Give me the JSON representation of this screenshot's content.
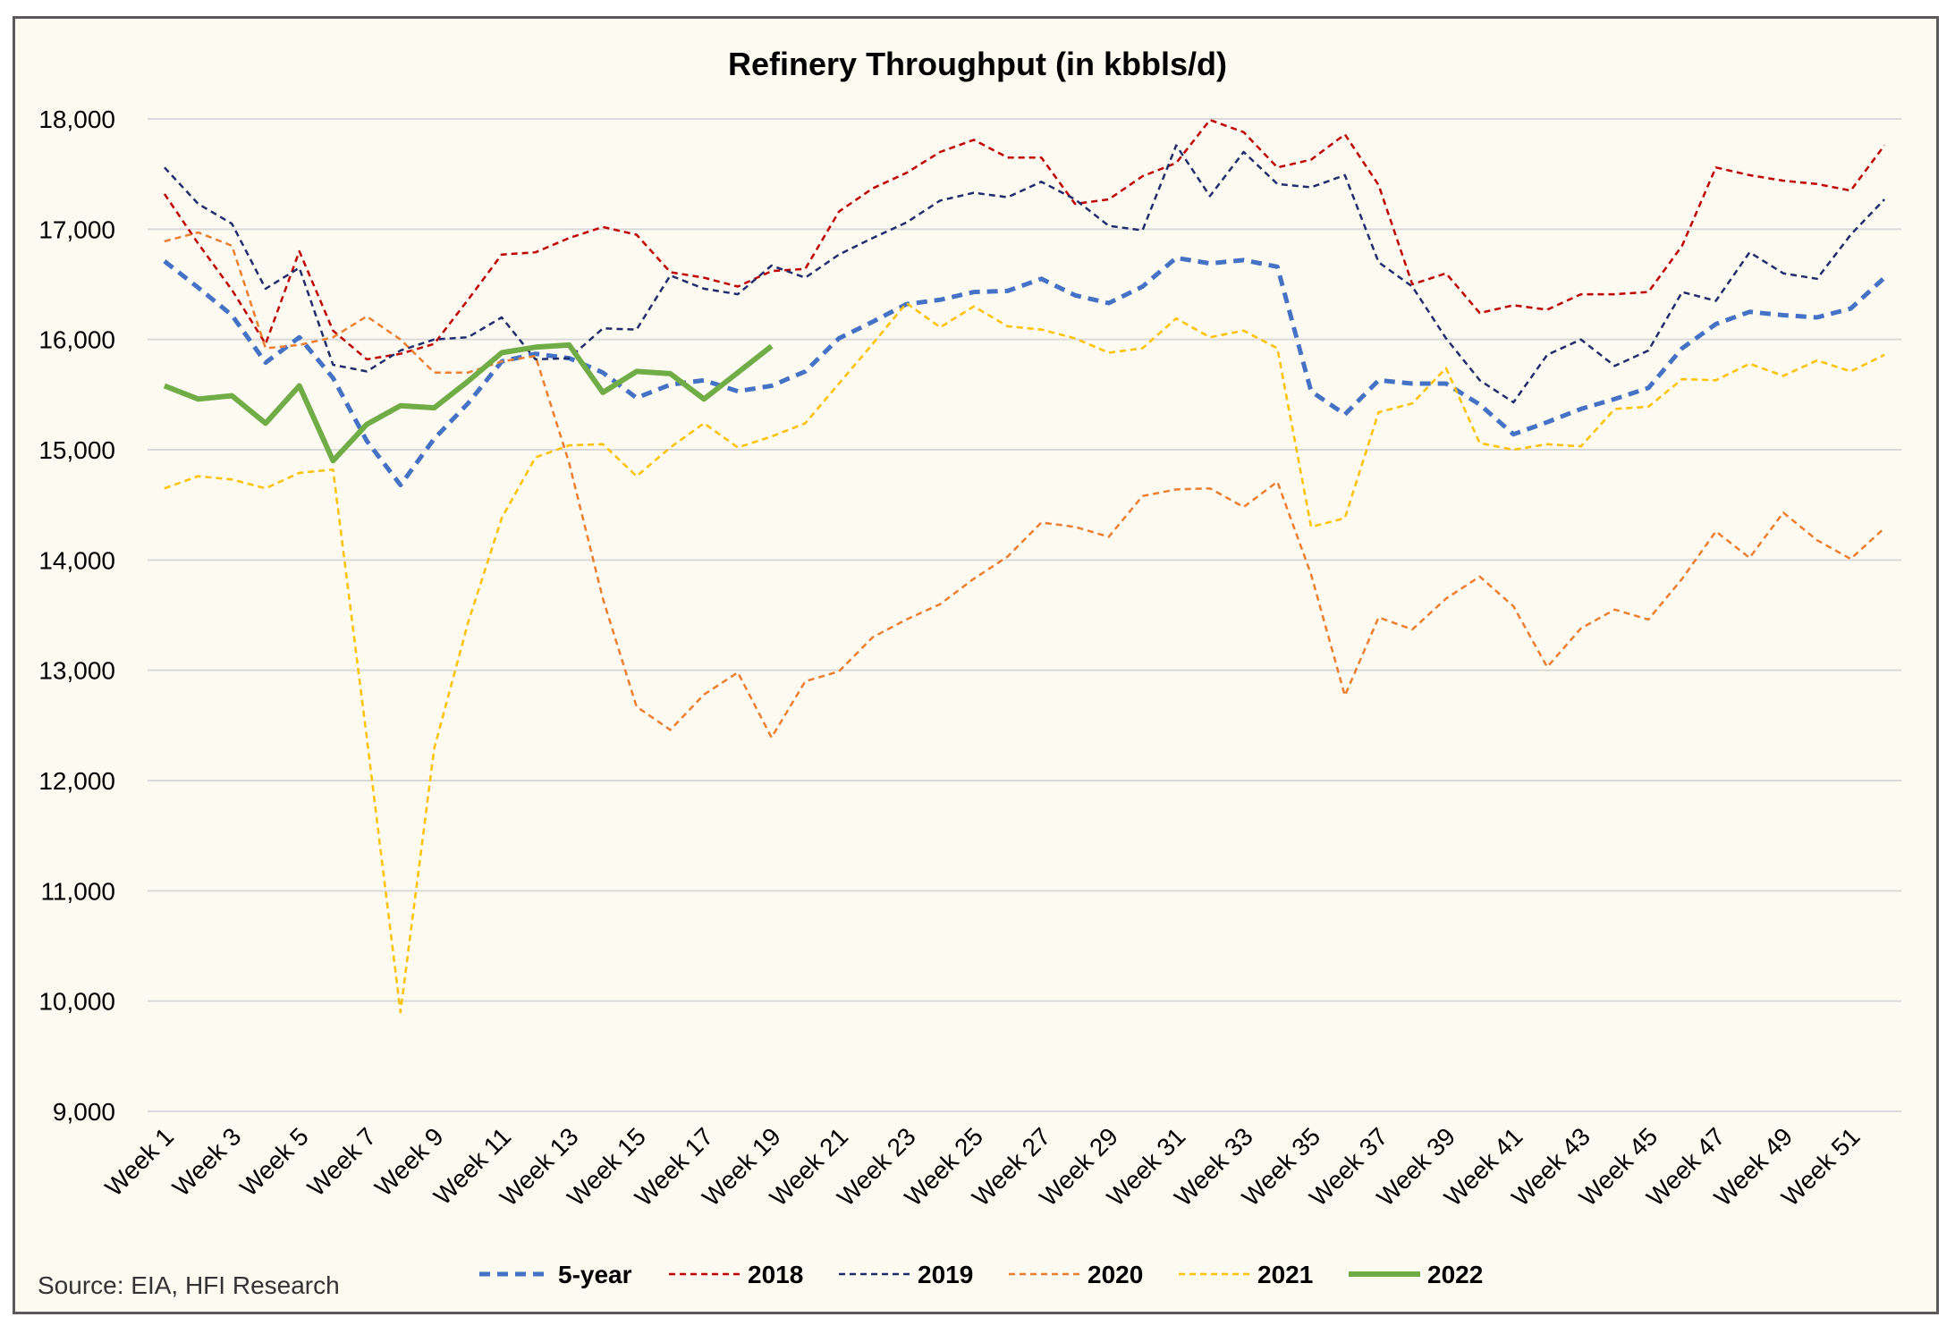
{
  "chart_data": {
    "type": "line",
    "title": "Refinery Throughput (in kbbls/d)",
    "source": "Source: EIA, HFI Research",
    "ylim": [
      9000,
      18000
    ],
    "yticks": [
      9000,
      10000,
      11000,
      12000,
      13000,
      14000,
      15000,
      16000,
      17000,
      18000
    ],
    "ytick_labels": [
      "9,000",
      "10,000",
      "11,000",
      "12,000",
      "13,000",
      "14,000",
      "15,000",
      "16,000",
      "17,000",
      "18,000"
    ],
    "x_count": 52,
    "xtick_labels": [
      "Week 1",
      "Week 3",
      "Week 5",
      "Week 7",
      "Week 9",
      "Week 11",
      "Week 13",
      "Week 15",
      "Week 17",
      "Week 19",
      "Week 21",
      "Week 23",
      "Week 25",
      "Week 27",
      "Week 29",
      "Week 31",
      "Week 33",
      "Week 35",
      "Week 37",
      "Week 39",
      "Week 41",
      "Week 43",
      "Week 45",
      "Week 47",
      "Week 49",
      "Week 51"
    ],
    "grid": true,
    "legend_position": "bottom",
    "series": [
      {
        "name": "5-year",
        "color": "#4472c4",
        "style": "dashed-bold",
        "values": [
          16710,
          16470,
          16220,
          15790,
          16020,
          15650,
          15080,
          14680,
          15100,
          15420,
          15800,
          15870,
          15830,
          15700,
          15470,
          15590,
          15630,
          15530,
          15580,
          15710,
          16010,
          16160,
          16320,
          16360,
          16430,
          16440,
          16550,
          16400,
          16330,
          16480,
          16740,
          16690,
          16720,
          16660,
          15530,
          15320,
          15630,
          15600,
          15600,
          15410,
          15140,
          15250,
          15370,
          15460,
          15560,
          15920,
          16140,
          16250,
          16220,
          16200,
          16280,
          16560
        ]
      },
      {
        "name": "2018",
        "color": "#c00000",
        "style": "dashed",
        "values": [
          17320,
          16870,
          16450,
          15960,
          16800,
          16080,
          15820,
          15870,
          15960,
          16360,
          16770,
          16790,
          16920,
          17020,
          16950,
          16610,
          16560,
          16480,
          16620,
          16640,
          17160,
          17370,
          17510,
          17700,
          17810,
          17650,
          17650,
          17230,
          17270,
          17480,
          17600,
          17990,
          17880,
          17560,
          17630,
          17860,
          17400,
          16500,
          16600,
          16240,
          16310,
          16270,
          16410,
          16410,
          16430,
          16850,
          17560,
          17490,
          17440,
          17410,
          17350,
          17760
        ]
      },
      {
        "name": "2019",
        "color": "#1f2d6b",
        "style": "dashed",
        "values": [
          17560,
          17230,
          17050,
          16460,
          16650,
          15770,
          15710,
          15900,
          16000,
          16020,
          16200,
          15820,
          15830,
          16100,
          16090,
          16580,
          16460,
          16410,
          16670,
          16560,
          16770,
          16920,
          17060,
          17260,
          17330,
          17290,
          17430,
          17270,
          17030,
          16990,
          17760,
          17300,
          17700,
          17410,
          17380,
          17490,
          16700,
          16480,
          16010,
          15630,
          15430,
          15860,
          16000,
          15760,
          15900,
          16430,
          16350,
          16790,
          16600,
          16550,
          16950,
          17270
        ]
      },
      {
        "name": "2020",
        "color": "#ed7d31",
        "style": "dashed",
        "values": [
          16890,
          16970,
          16850,
          15920,
          15950,
          16020,
          16210,
          16000,
          15700,
          15700,
          15800,
          15850,
          14880,
          13650,
          12670,
          12460,
          12780,
          12980,
          12390,
          12900,
          12990,
          13300,
          13460,
          13600,
          13830,
          14030,
          14340,
          14300,
          14210,
          14580,
          14640,
          14650,
          14480,
          14710,
          13870,
          12770,
          13480,
          13370,
          13650,
          13850,
          13580,
          13030,
          13380,
          13550,
          13460,
          13830,
          14260,
          14020,
          14430,
          14180,
          14010,
          14290
        ]
      },
      {
        "name": "2021",
        "color": "#ffc000",
        "style": "dashed",
        "values": [
          14650,
          14760,
          14730,
          14650,
          14790,
          14820,
          12390,
          9900,
          12290,
          13430,
          14380,
          14930,
          15040,
          15050,
          14760,
          15020,
          15240,
          15020,
          15120,
          15240,
          15600,
          15960,
          16330,
          16110,
          16300,
          16120,
          16090,
          16010,
          15880,
          15920,
          16190,
          16020,
          16080,
          15920,
          14300,
          14380,
          15340,
          15420,
          15740,
          15060,
          15000,
          15050,
          15030,
          15370,
          15390,
          15640,
          15630,
          15780,
          15670,
          15810,
          15710,
          15860
        ]
      },
      {
        "name": "2022",
        "color": "#70ad47",
        "style": "solid",
        "values": [
          15580,
          15460,
          15490,
          15240,
          15580,
          14900,
          15230,
          15400,
          15380,
          15620,
          15880,
          15930,
          15950,
          15520,
          15710,
          15690,
          15460,
          15700,
          15940
        ]
      }
    ]
  }
}
